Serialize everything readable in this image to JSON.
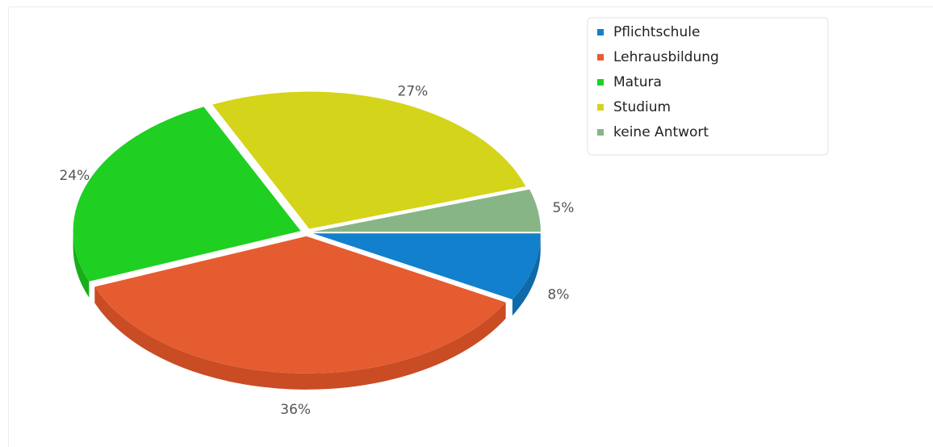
{
  "chart_data": {
    "type": "pie",
    "variant": "3d-exploded",
    "slices": [
      {
        "label": "Pflichtschule",
        "value": 8,
        "value_label": "8%",
        "color": "#1280cc",
        "side_color": "#0f6aa9"
      },
      {
        "label": "Lehrausbildung",
        "value": 36,
        "value_label": "36%",
        "color": "#e55c30",
        "side_color": "#c94c24"
      },
      {
        "label": "Matura",
        "value": 24,
        "value_label": "24%",
        "color": "#1fcf22",
        "side_color": "#18ad1b"
      },
      {
        "label": "Studium",
        "value": 27,
        "value_label": "27%",
        "color": "#d4d41a",
        "side_color": "#b3b312"
      },
      {
        "label": "keine Antwort",
        "value": 5,
        "value_label": "5%",
        "color": "#88b586",
        "side_color": "#6f9a6d"
      }
    ],
    "legend_position": "top-right"
  }
}
